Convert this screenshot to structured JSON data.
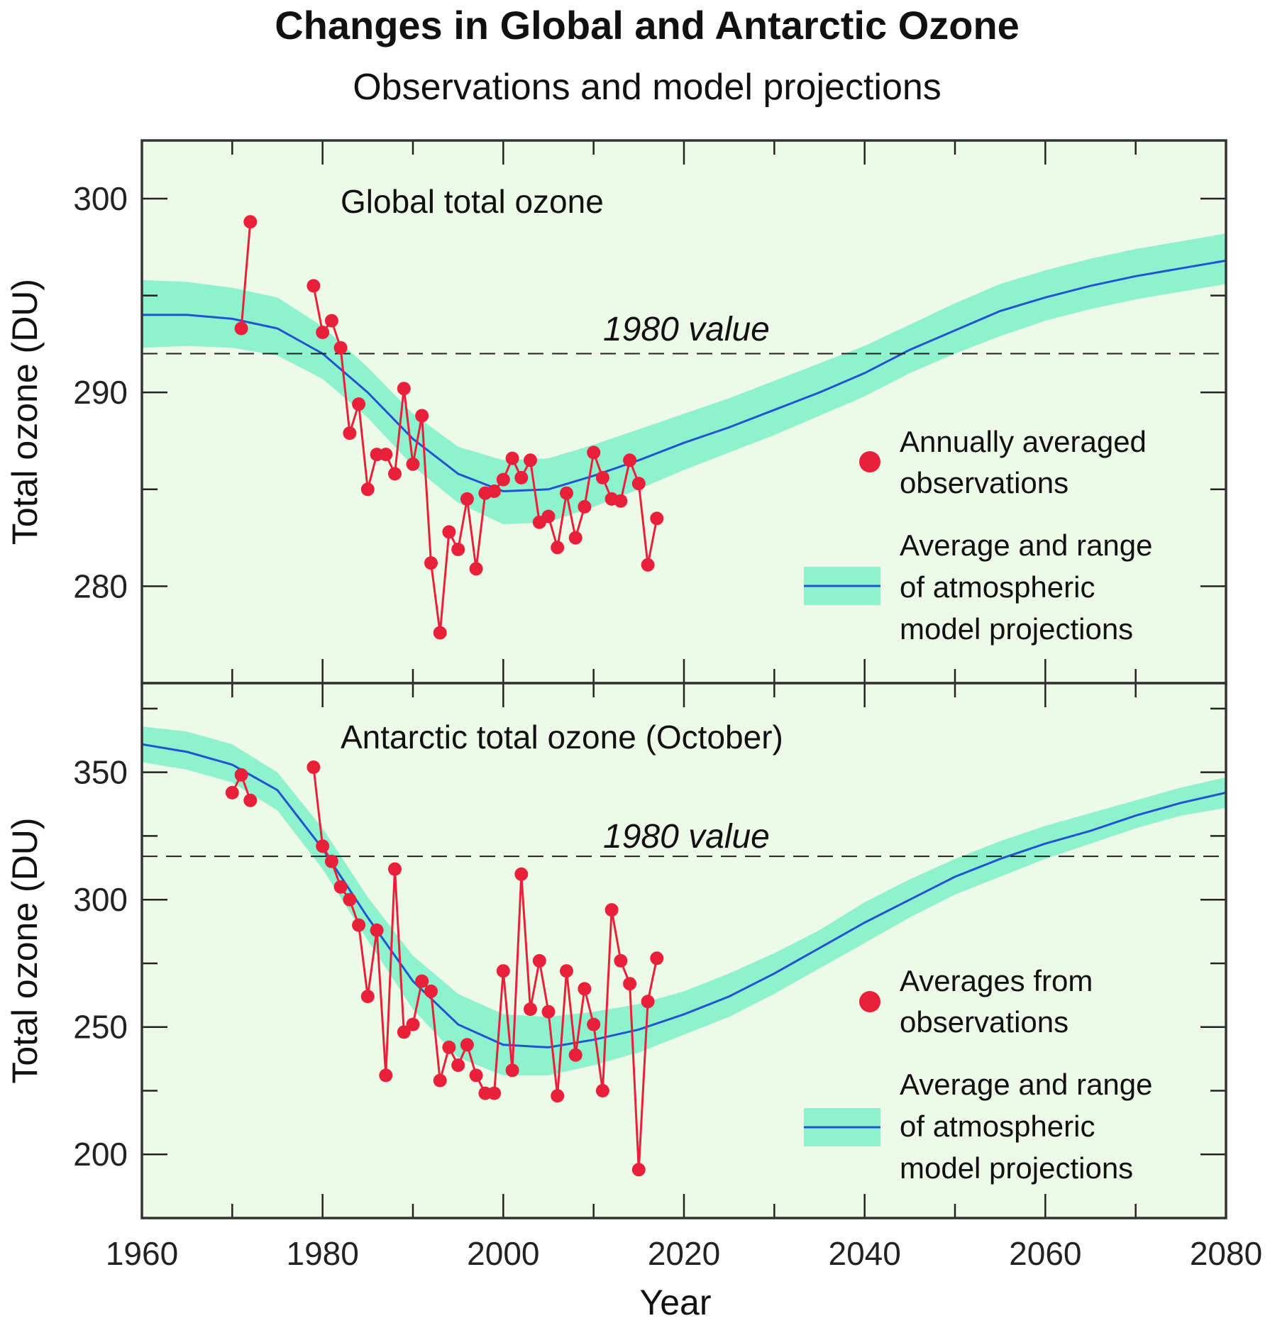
{
  "title": "Changes in Global and Antarctic Ozone",
  "subtitle": "Observations and model projections",
  "colors": {
    "plot_bg": "#eefae8",
    "band": "#8ef2cf",
    "mean_line": "#2255cc",
    "obs": "#e8203a",
    "frame": "#333333"
  },
  "x_axis": {
    "label": "Year",
    "range": [
      1960,
      2080
    ],
    "ticks": [
      1960,
      1980,
      2000,
      2020,
      2040,
      2060,
      2080
    ]
  },
  "chart_data": [
    {
      "type": "line",
      "title": "Global total ozone",
      "ylabel": "Total ozone (DU)",
      "ylim": [
        275,
        303
      ],
      "yticks": [
        280,
        290,
        300
      ],
      "reference": {
        "label": "1980 value",
        "value": 292
      },
      "legend": {
        "observations": "Annually averaged observations",
        "observations_lines": [
          "Annually averaged",
          "observations"
        ],
        "model": "Average and range of atmospheric model projections",
        "model_lines": [
          "Average and range",
          "of atmospheric",
          "model projections"
        ]
      },
      "series": [
        {
          "name": "Annually averaged observations",
          "kind": "observations",
          "segments": [
            {
              "x": [
                1971,
                1972
              ],
              "y": [
                293.3,
                298.8
              ]
            },
            {
              "x": [
                1979,
                1980,
                1981,
                1982,
                1983,
                1984,
                1985,
                1986,
                1987,
                1988,
                1989,
                1990,
                1991,
                1992,
                1993,
                1994,
                1995,
                1996,
                1997,
                1998,
                1999,
                2000,
                2001,
                2002,
                2003,
                2004,
                2005,
                2006,
                2007,
                2008,
                2009,
                2010,
                2011,
                2012,
                2013,
                2014,
                2015,
                2016,
                2017
              ],
              "y": [
                295.5,
                293.1,
                293.7,
                292.3,
                287.9,
                289.4,
                285.0,
                286.8,
                286.8,
                285.8,
                290.2,
                286.3,
                288.8,
                281.2,
                277.6,
                282.8,
                281.9,
                284.5,
                280.9,
                284.8,
                284.9,
                285.5,
                286.6,
                285.6,
                286.5,
                283.3,
                283.6,
                282.0,
                284.8,
                282.5,
                284.1,
                286.9,
                285.6,
                284.5,
                284.4,
                286.5,
                285.3,
                281.1,
                283.5
              ]
            }
          ]
        },
        {
          "name": "Average and range of atmospheric model projections",
          "kind": "model",
          "x": [
            1960,
            1965,
            1970,
            1975,
            1980,
            1985,
            1990,
            1995,
            2000,
            2005,
            2010,
            2015,
            2020,
            2025,
            2030,
            2035,
            2040,
            2045,
            2050,
            2055,
            2060,
            2065,
            2070,
            2075,
            2080
          ],
          "mean": [
            294.0,
            294.0,
            293.8,
            293.3,
            292.0,
            290.0,
            287.6,
            285.8,
            284.9,
            285.0,
            285.7,
            286.5,
            287.4,
            288.2,
            289.1,
            290.0,
            291.0,
            292.2,
            293.2,
            294.2,
            294.9,
            295.5,
            296.0,
            296.4,
            296.8
          ],
          "low": [
            292.3,
            292.4,
            292.3,
            291.9,
            290.7,
            288.7,
            286.2,
            284.3,
            283.2,
            283.3,
            284.1,
            285.0,
            286.0,
            286.9,
            287.8,
            288.8,
            289.8,
            291.0,
            292.0,
            292.9,
            293.7,
            294.3,
            294.8,
            295.2,
            295.6
          ],
          "high": [
            295.8,
            295.7,
            295.4,
            294.9,
            293.4,
            291.3,
            288.9,
            287.2,
            286.5,
            286.6,
            287.3,
            288.1,
            288.9,
            289.7,
            290.6,
            291.5,
            292.4,
            293.5,
            294.6,
            295.6,
            296.3,
            296.9,
            297.4,
            297.8,
            298.2
          ]
        }
      ]
    },
    {
      "type": "line",
      "title": "Antarctic total ozone (October)",
      "ylabel": "Total ozone (DU)",
      "ylim": [
        175,
        385
      ],
      "yticks": [
        200,
        250,
        300,
        350
      ],
      "reference": {
        "label": "1980 value",
        "value": 317
      },
      "legend": {
        "observations": "Averages from observations",
        "observations_lines": [
          "Averages from",
          "observations"
        ],
        "model": "Average and range of atmospheric model projections",
        "model_lines": [
          "Average and range",
          "of atmospheric",
          "model projections"
        ]
      },
      "series": [
        {
          "name": "Averages from observations",
          "kind": "observations",
          "segments": [
            {
              "x": [
                1970,
                1971,
                1972
              ],
              "y": [
                342,
                349,
                339
              ]
            },
            {
              "x": [
                1979,
                1980,
                1981,
                1982,
                1983,
                1984,
                1985,
                1986,
                1987,
                1988,
                1989,
                1990,
                1991,
                1992,
                1993,
                1994,
                1995,
                1996,
                1997,
                1998,
                1999,
                2000,
                2001,
                2002,
                2003,
                2004,
                2005,
                2006,
                2007,
                2008,
                2009,
                2010,
                2011,
                2012,
                2013,
                2014,
                2015,
                2016,
                2017
              ],
              "y": [
                352,
                321,
                315,
                305,
                300,
                290,
                262,
                288,
                231,
                312,
                248,
                251,
                268,
                264,
                229,
                242,
                235,
                243,
                231,
                224,
                224,
                272,
                233,
                310,
                257,
                276,
                256,
                223,
                272,
                239,
                265,
                251,
                225,
                296,
                276,
                267,
                194,
                260,
                277
              ]
            }
          ]
        },
        {
          "name": "Average and range of atmospheric model projections",
          "kind": "model",
          "x": [
            1960,
            1965,
            1970,
            1975,
            1980,
            1985,
            1990,
            1995,
            2000,
            2005,
            2010,
            2015,
            2020,
            2025,
            2030,
            2035,
            2040,
            2045,
            2050,
            2055,
            2060,
            2065,
            2070,
            2075,
            2080
          ],
          "mean": [
            361,
            358,
            353,
            343,
            320,
            293,
            268,
            251,
            243,
            242,
            245,
            249,
            255,
            262,
            271,
            281,
            291,
            300,
            309,
            316,
            322,
            327,
            333,
            338,
            342
          ],
          "low": [
            354,
            351,
            346,
            335,
            312,
            284,
            257,
            238,
            231,
            231,
            235,
            240,
            247,
            254,
            263,
            273,
            283,
            293,
            302,
            309,
            316,
            322,
            328,
            333,
            336
          ],
          "high": [
            368,
            366,
            361,
            350,
            328,
            301,
            278,
            263,
            255,
            254,
            256,
            259,
            264,
            271,
            279,
            288,
            299,
            308,
            316,
            323,
            329,
            334,
            339,
            344,
            348
          ]
        }
      ]
    }
  ]
}
